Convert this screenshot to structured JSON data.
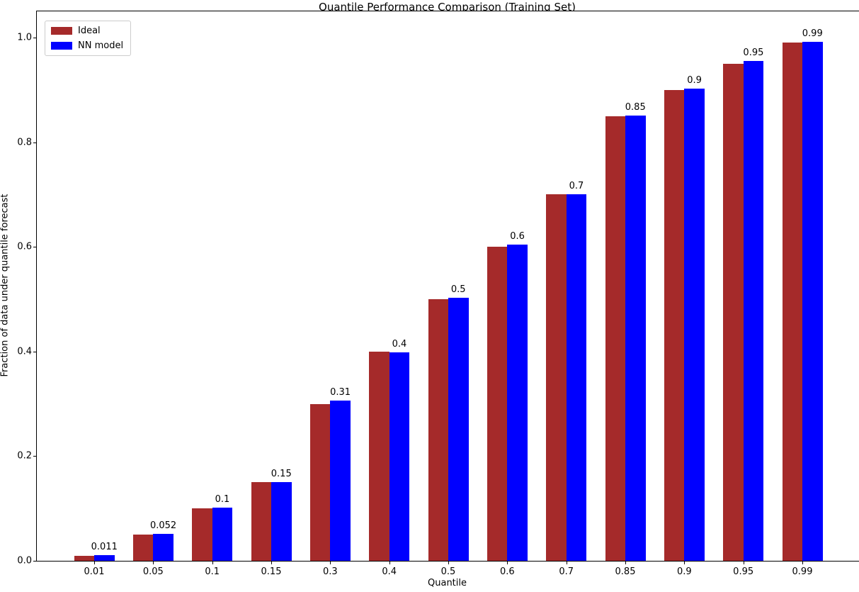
{
  "figure": {
    "title": "Quantile Performance Comparison (Training Set)"
  },
  "chart_data": {
    "type": "bar",
    "title": "Quantile Performance Comparison (Training Set)",
    "xlabel": "Quantile",
    "ylabel": "Fraction of data under quantile forecast",
    "categories": [
      "0.01",
      "0.05",
      "0.1",
      "0.15",
      "0.3",
      "0.4",
      "0.5",
      "0.6",
      "0.7",
      "0.85",
      "0.9",
      "0.95",
      "0.99"
    ],
    "series": [
      {
        "name": "Ideal",
        "color": "#a52a2a",
        "values": [
          0.01,
          0.05,
          0.1,
          0.15,
          0.3,
          0.4,
          0.5,
          0.6,
          0.7,
          0.85,
          0.9,
          0.95,
          0.99
        ]
      },
      {
        "name": "NN model",
        "color": "#0000ff",
        "values": [
          0.011,
          0.052,
          0.101,
          0.151,
          0.306,
          0.398,
          0.503,
          0.604,
          0.7,
          0.851,
          0.903,
          0.955,
          0.992
        ]
      }
    ],
    "bar_labels": [
      "0.011",
      "0.052",
      "0.1",
      "0.15",
      "0.31",
      "0.4",
      "0.5",
      "0.6",
      "0.7",
      "0.85",
      "0.9",
      "0.95",
      "0.99"
    ],
    "ytick_values": [
      0.0,
      0.2,
      0.4,
      0.6,
      0.8,
      1.0
    ],
    "ytick_labels": [
      "0.0",
      "0.2",
      "0.4",
      "0.6",
      "0.8",
      "1.0"
    ],
    "ylim": [
      0,
      1.05
    ],
    "legend_position": "upper left",
    "grid": false,
    "annotation_color": "#000000",
    "spine_color": "#000000"
  }
}
